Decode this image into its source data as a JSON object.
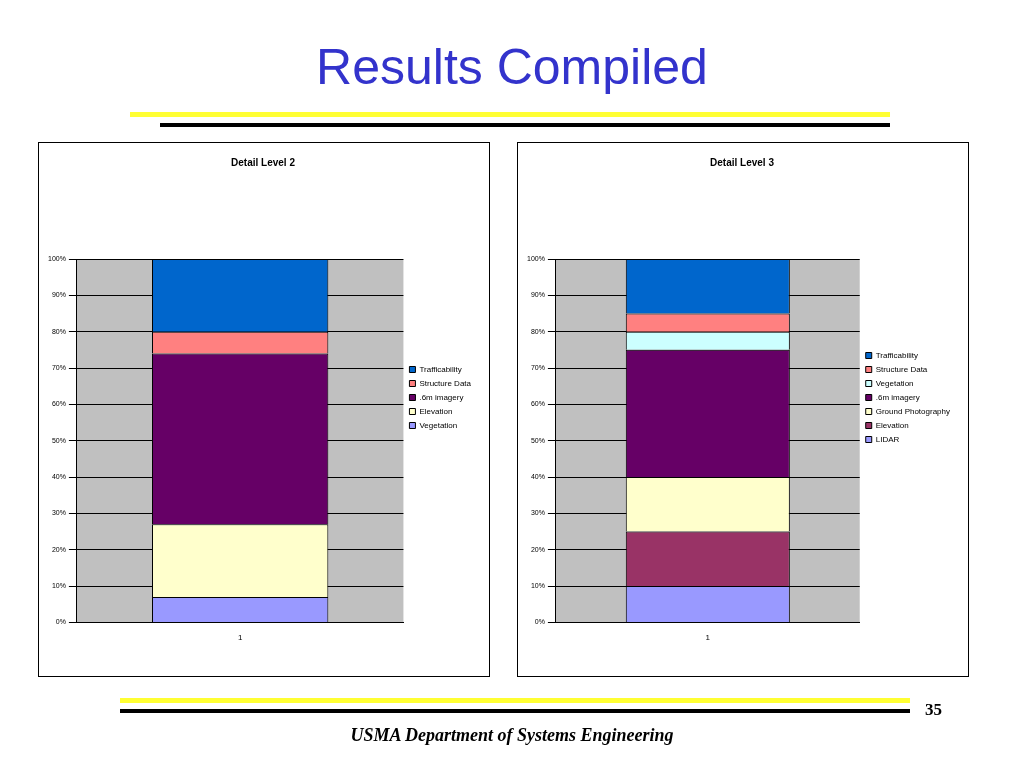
{
  "chart_data": [
    {
      "type": "bar",
      "title": "Detail Level 2",
      "categories": [
        "1"
      ],
      "stacked": true,
      "ylim": [
        0,
        100
      ],
      "yticks": [
        {
          "value": 0,
          "label": "0%"
        },
        {
          "value": 10,
          "label": "10%"
        },
        {
          "value": 20,
          "label": "20%"
        },
        {
          "value": 30,
          "label": "30%"
        },
        {
          "value": 40,
          "label": "40%"
        },
        {
          "value": 50,
          "label": "50%"
        },
        {
          "value": 60,
          "label": "60%"
        },
        {
          "value": 70,
          "label": "70%"
        },
        {
          "value": 80,
          "label": "80%"
        },
        {
          "value": 90,
          "label": "90%"
        },
        {
          "value": 100,
          "label": "100%"
        }
      ],
      "grid": "y",
      "legend": "right",
      "annotations": [
        "Results Compiled"
      ],
      "series": [
        {
          "name": "Vegetation",
          "color": "#9999ff",
          "values": [
            7
          ]
        },
        {
          "name": "Elevation",
          "color": "#ffffcc",
          "values": [
            20
          ]
        },
        {
          "name": ".6m imagery",
          "color": "#660066",
          "values": [
            47
          ]
        },
        {
          "name": "Structure Data",
          "color": "#ff8080",
          "values": [
            6
          ]
        },
        {
          "name": "Trafficability",
          "color": "#0066cc",
          "values": [
            20
          ]
        }
      ]
    },
    {
      "type": "bar",
      "title": "Detail Level 3",
      "categories": [
        "1"
      ],
      "stacked": true,
      "ylim": [
        0,
        100
      ],
      "yticks": [
        {
          "value": 0,
          "label": "0%"
        },
        {
          "value": 10,
          "label": "10%"
        },
        {
          "value": 20,
          "label": "20%"
        },
        {
          "value": 30,
          "label": "30%"
        },
        {
          "value": 40,
          "label": "40%"
        },
        {
          "value": 50,
          "label": "50%"
        },
        {
          "value": 60,
          "label": "60%"
        },
        {
          "value": 70,
          "label": "70%"
        },
        {
          "value": 80,
          "label": "80%"
        },
        {
          "value": 90,
          "label": "90%"
        },
        {
          "value": 100,
          "label": "100%"
        }
      ],
      "grid": "y",
      "legend": "right",
      "annotations": [
        "35",
        "USMA Department of Systems Engineering"
      ],
      "series": [
        {
          "name": "LIDAR",
          "color": "#9999ff",
          "values": [
            10
          ]
        },
        {
          "name": "Elevation",
          "color": "#993366",
          "values": [
            15
          ]
        },
        {
          "name": "Ground Photography",
          "color": "#ffffcc",
          "values": [
            15
          ]
        },
        {
          "name": ".6m imagery",
          "color": "#660066",
          "values": [
            35
          ]
        },
        {
          "name": "Vegetation",
          "color": "#ccffff",
          "values": [
            5
          ]
        },
        {
          "name": "Structure Data",
          "color": "#ff8080",
          "values": [
            5
          ]
        },
        {
          "name": "Trafficability",
          "color": "#0066cc",
          "values": [
            15
          ]
        }
      ]
    }
  ]
}
